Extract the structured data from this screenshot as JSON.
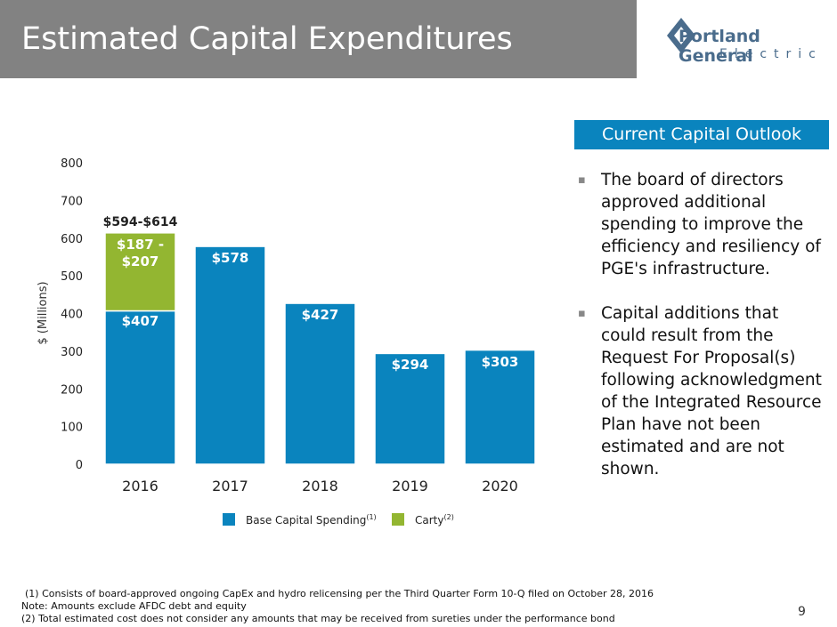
{
  "header": {
    "title": "Estimated Capital Expenditures",
    "logo_line1": "Portland General",
    "logo_line2": "Electric"
  },
  "chart_data": {
    "type": "stacked_bar",
    "y_label": "$ (Millions)",
    "categories": [
      "2016",
      "2017",
      "2018",
      "2019",
      "2020"
    ],
    "series": [
      {
        "name": "Base Capital Spending",
        "name_note": "(1)",
        "color": "#0a84be",
        "values": [
          407,
          578,
          427,
          294,
          303
        ],
        "value_labels": [
          "$407",
          "$578",
          "$427",
          "$294",
          "$303"
        ]
      },
      {
        "name": "Carty",
        "name_note": "(2)",
        "color": "#93b631",
        "values": [
          207,
          null,
          null,
          null,
          null
        ],
        "value_labels": [
          "$187 - $207",
          null,
          null,
          null,
          null
        ]
      }
    ],
    "total_labels": [
      "$594-$614",
      null,
      null,
      null,
      null
    ],
    "ylim": [
      0,
      800
    ],
    "yticks": [
      0,
      100,
      200,
      300,
      400,
      500,
      600,
      700,
      800
    ],
    "grid": false,
    "legend": "bottom"
  },
  "panel": {
    "title": "Current Capital Outlook",
    "bullets": [
      "The board of directors approved additional spending to improve the efficiency and resiliency of PGE's infrastructure.",
      "Capital additions that could result from the Request For Proposal(s) following acknowledgment of the Integrated Resource Plan have not been estimated and are not shown."
    ]
  },
  "footnotes": [
    "(1)  Consists of board-approved ongoing CapEx and hydro relicensing per the Third Quarter Form 10-Q filed on October 28, 2016",
    "Note: Amounts exclude AFDC debt and equity",
    "(2) Total estimated cost does not consider any amounts that may be received from sureties under the performance bond"
  ],
  "page_number": "9"
}
